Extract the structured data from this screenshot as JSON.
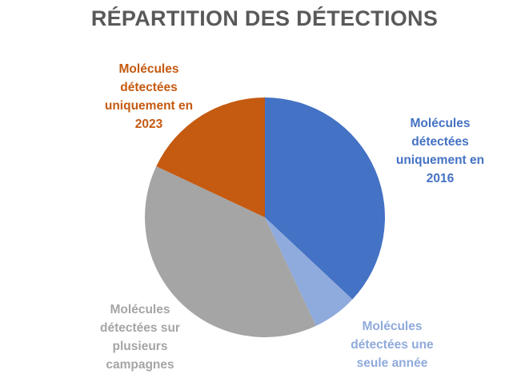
{
  "chart_data": {
    "type": "pie",
    "title": "RÉPARTITION DES DÉTECTIONS",
    "slices": [
      {
        "label": "Molécules\ndétectées\nuniquement en\n2016",
        "value": 37,
        "color": "#4472C4"
      },
      {
        "label": "Molécules\ndétectées une\nseule année",
        "value": 6,
        "color": "#8FAADC"
      },
      {
        "label": "Molécules\ndétectées sur\nplusieurs\ncampagnes",
        "value": 39,
        "color": "#A5A5A5"
      },
      {
        "label": "Molécules\ndétectées\nuniquement en\n2023",
        "value": 18,
        "color": "#C55A11"
      }
    ],
    "start_angle_deg": 0,
    "direction": "clockwise",
    "legend": "none",
    "label_position": "outside"
  }
}
